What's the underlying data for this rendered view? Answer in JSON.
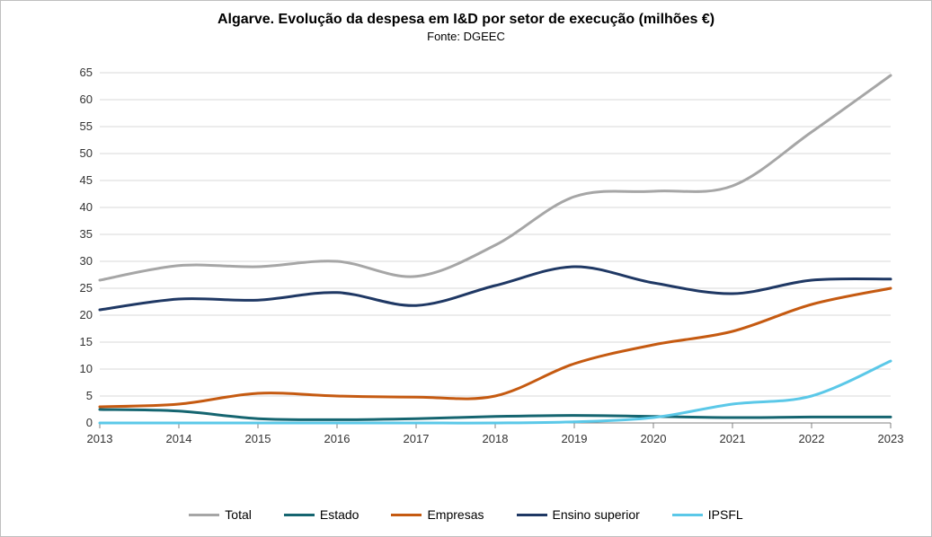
{
  "chart": {
    "type": "line",
    "title": "Algarve. Evolução da despesa em  I&D por setor de execução (milhões €)",
    "subtitle": "Fonte: DGEEC",
    "title_fontsize": 16,
    "subtitle_fontsize": 13,
    "label_fontsize": 13,
    "background_color": "#ffffff",
    "border_color": "#bfbfbf",
    "grid_color": "#d9d9d9",
    "axis_color": "#808080",
    "line_width": 3,
    "x": {
      "categories": [
        "2013",
        "2014",
        "2015",
        "2016",
        "2017",
        "2018",
        "2019",
        "2020",
        "2021",
        "2022",
        "2023"
      ]
    },
    "y": {
      "min": 0,
      "max": 65,
      "step": 5
    },
    "series": [
      {
        "name": "Total",
        "color": "#a6a6a6",
        "values": [
          26.5,
          29.2,
          29.0,
          30.0,
          27.2,
          33.0,
          42.0,
          43.0,
          44.0,
          54.0,
          64.5
        ]
      },
      {
        "name": "Estado",
        "color": "#156570",
        "values": [
          2.5,
          2.2,
          0.8,
          0.6,
          0.8,
          1.2,
          1.4,
          1.2,
          1.0,
          1.1,
          1.1
        ]
      },
      {
        "name": "Empresas",
        "color": "#c55a11",
        "values": [
          3.0,
          3.5,
          5.5,
          5.0,
          4.8,
          5.0,
          11.0,
          14.5,
          17.0,
          22.0,
          25.0
        ]
      },
      {
        "name": "Ensino superior",
        "color": "#1f3864",
        "values": [
          21.0,
          23.0,
          22.8,
          24.2,
          21.8,
          25.5,
          29.0,
          26.0,
          24.0,
          26.5,
          26.7
        ]
      },
      {
        "name": "IPSFL",
        "color": "#5bc8e8",
        "values": [
          0.0,
          0.0,
          0.0,
          0.0,
          0.0,
          0.0,
          0.2,
          1.0,
          3.5,
          5.0,
          11.5
        ]
      }
    ]
  }
}
